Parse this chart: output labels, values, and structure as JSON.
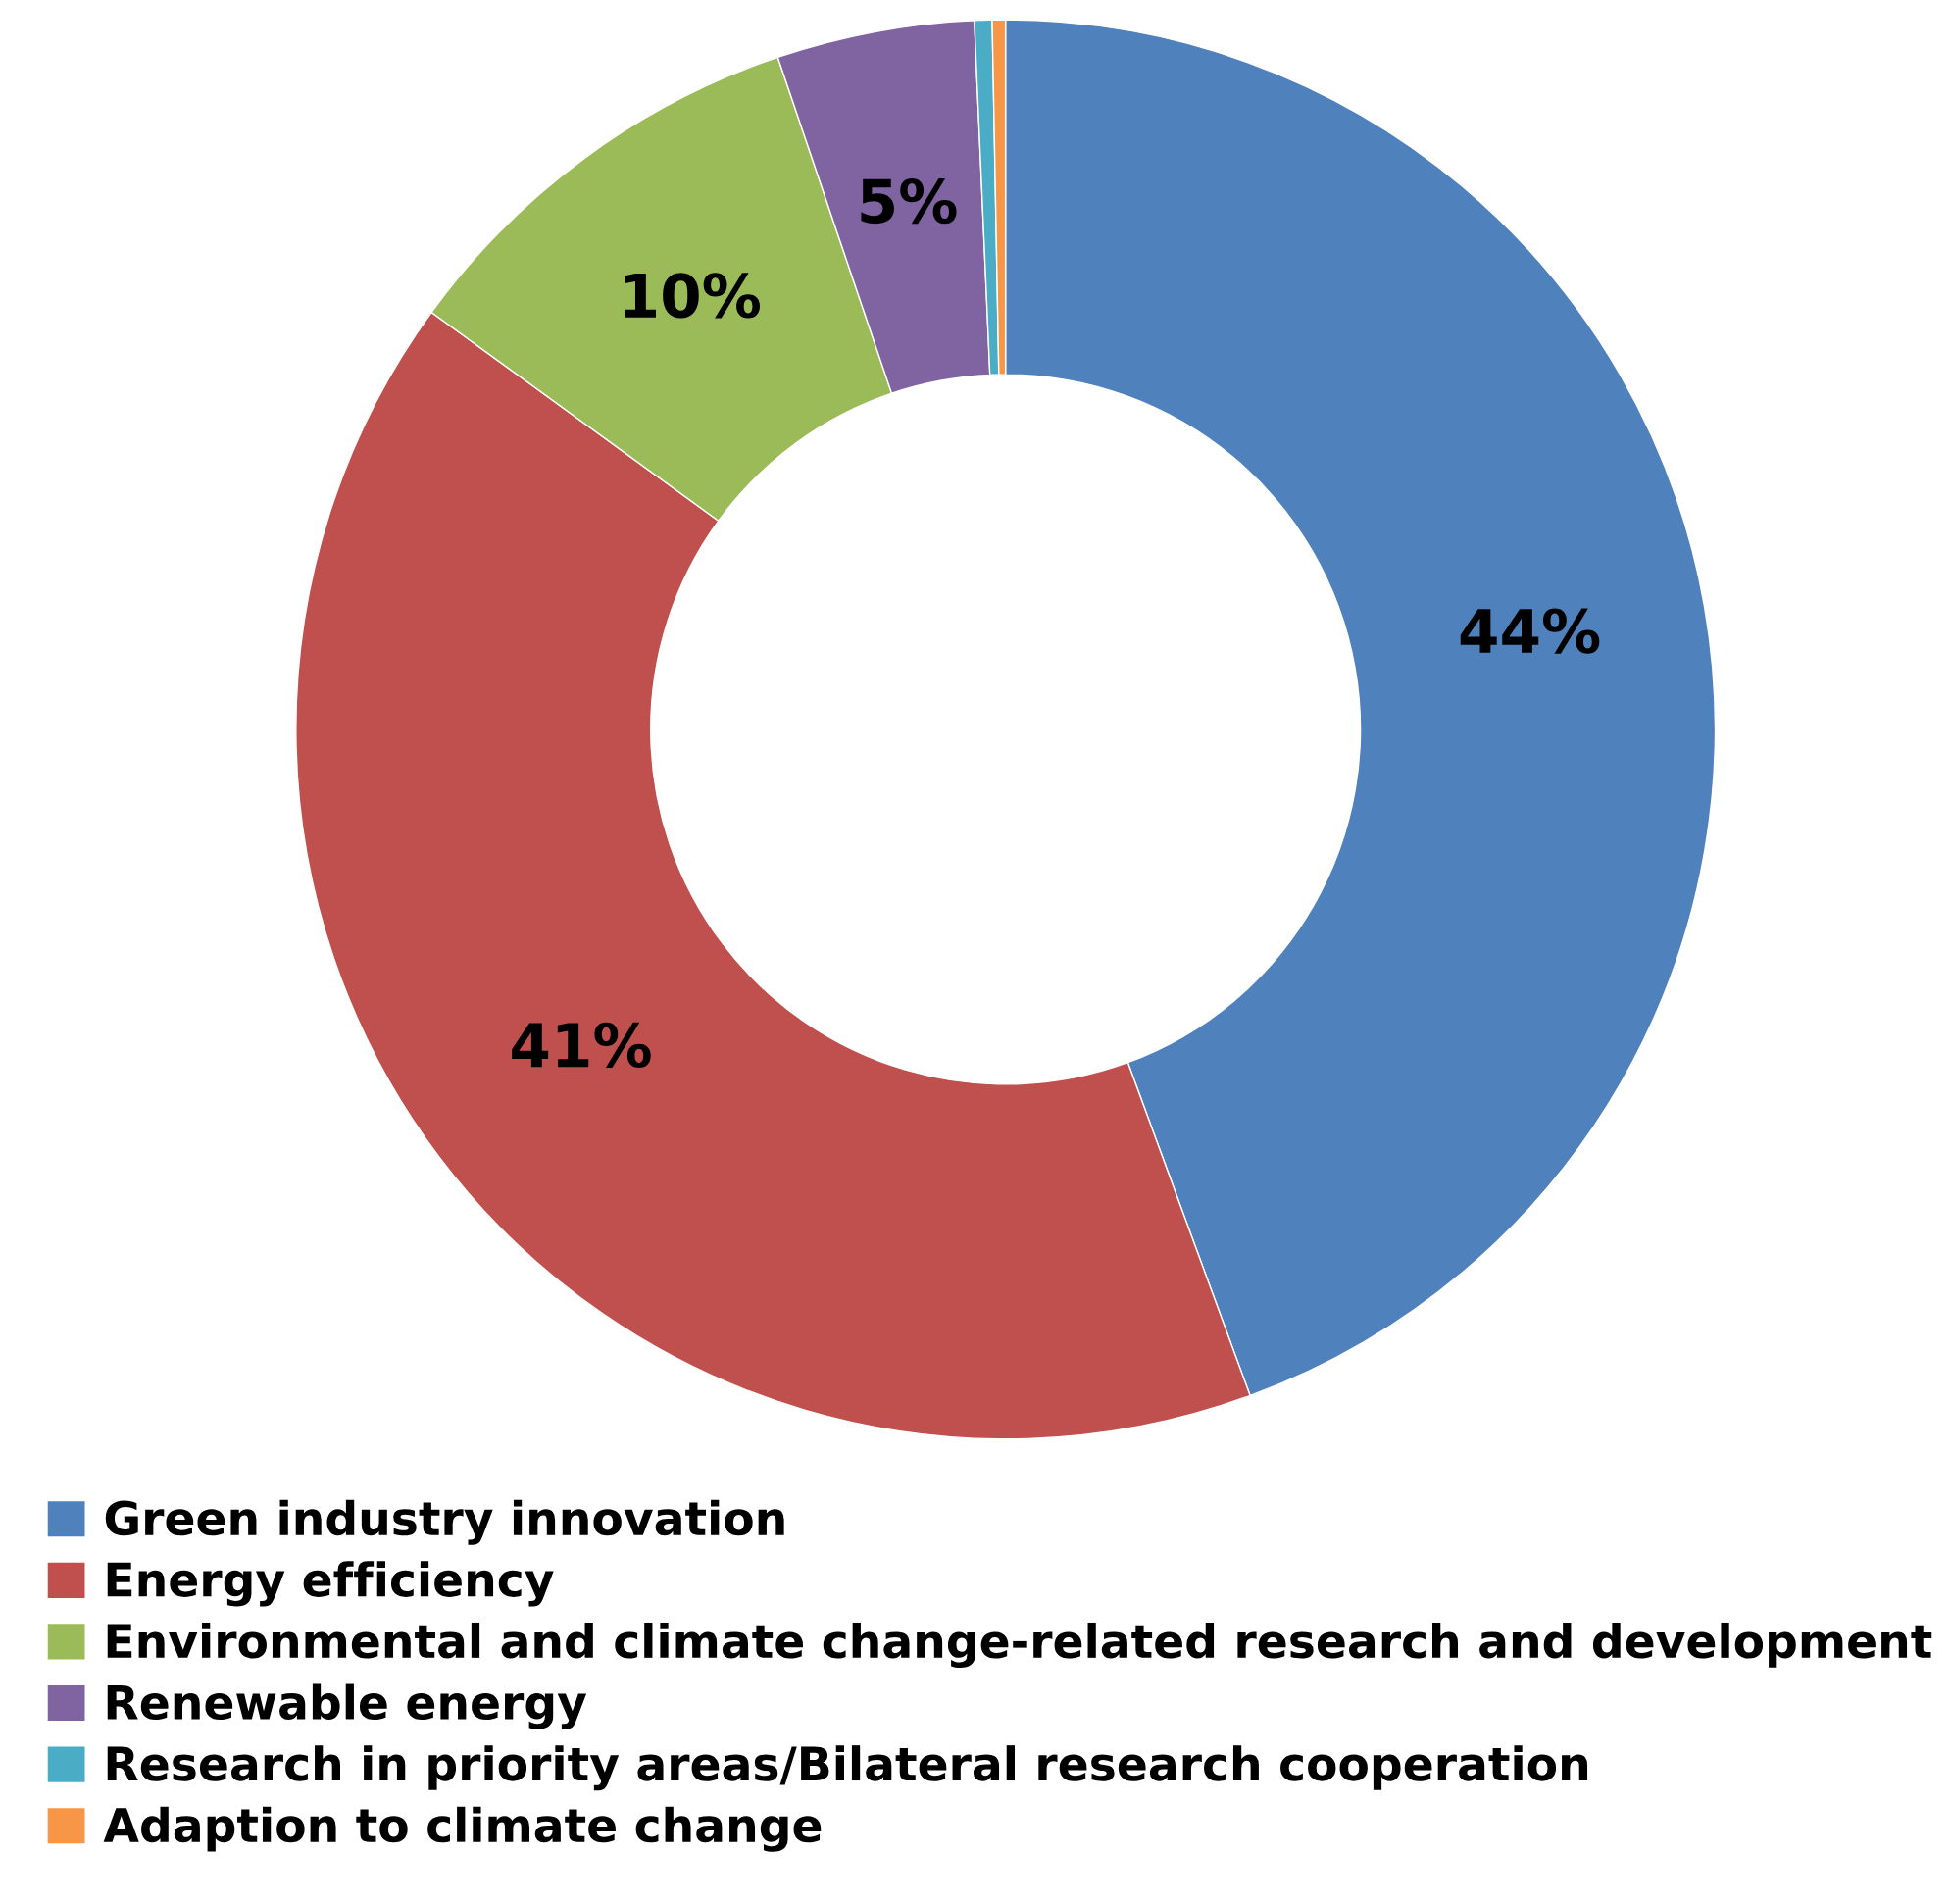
{
  "chart_data": {
    "type": "donut",
    "categories": [
      "Green industry innovation",
      "Energy efficiency",
      "Environmental and climate change-related research and development",
      "Renewable energy",
      "Research in priority areas/Bilateral research cooperation",
      "Adaption to climate change"
    ],
    "values": [
      44.4,
      40.6,
      9.8,
      4.5,
      0.4,
      0.3
    ],
    "colors": [
      "#4f81bd",
      "#c0504d",
      "#9bbb59",
      "#8064a2",
      "#4bacc6",
      "#f79646"
    ],
    "value_labels": [
      "44%",
      "41%",
      "10%",
      "5%",
      null,
      null
    ],
    "legend": "bottom"
  }
}
